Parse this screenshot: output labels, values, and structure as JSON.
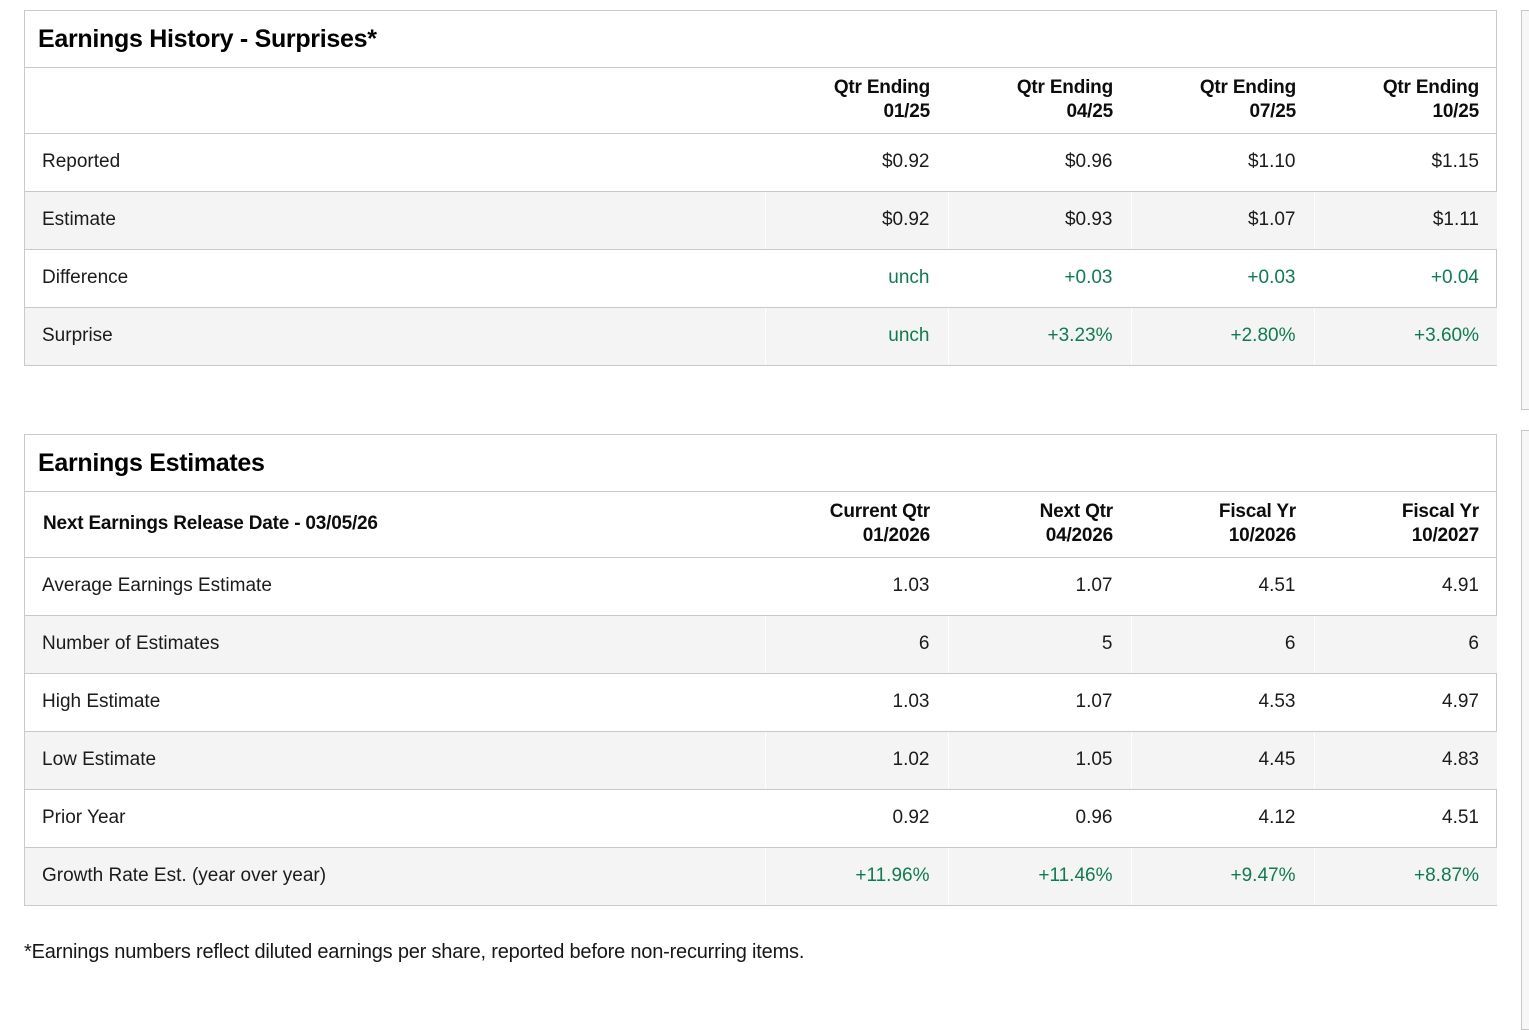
{
  "colors": {
    "positive": "#0e7c4f",
    "row_stripe": "#f4f4f4",
    "border": "#c9c9c9"
  },
  "history": {
    "title": "Earnings History - Surprises*",
    "columns": [
      "Qtr Ending\n01/25",
      "Qtr Ending\n04/25",
      "Qtr Ending\n07/25",
      "Qtr Ending\n10/25"
    ],
    "rows": [
      {
        "label": "Reported",
        "values": [
          "$0.92",
          "$0.96",
          "$1.10",
          "$1.15"
        ]
      },
      {
        "label": "Estimate",
        "values": [
          "$0.92",
          "$0.93",
          "$1.07",
          "$1.11"
        ]
      },
      {
        "label": "Difference",
        "values": [
          "unch",
          "+0.03",
          "+0.03",
          "+0.04"
        ]
      },
      {
        "label": "Surprise",
        "values": [
          "unch",
          "+3.23%",
          "+2.80%",
          "+3.60%"
        ]
      }
    ]
  },
  "estimates": {
    "title": "Earnings Estimates",
    "row_header_label": "Next Earnings Release Date - 03/05/26",
    "columns": [
      "Current Qtr\n01/2026",
      "Next Qtr\n04/2026",
      "Fiscal Yr\n10/2026",
      "Fiscal Yr\n10/2027"
    ],
    "rows": [
      {
        "label": "Average Earnings Estimate",
        "values": [
          "1.03",
          "1.07",
          "4.51",
          "4.91"
        ]
      },
      {
        "label": "Number of Estimates",
        "values": [
          "6",
          "5",
          "6",
          "6"
        ]
      },
      {
        "label": "High Estimate",
        "values": [
          "1.03",
          "1.07",
          "4.53",
          "4.97"
        ]
      },
      {
        "label": "Low Estimate",
        "values": [
          "1.02",
          "1.05",
          "4.45",
          "4.83"
        ]
      },
      {
        "label": "Prior Year",
        "values": [
          "0.92",
          "0.96",
          "4.12",
          "4.51"
        ]
      },
      {
        "label": "Growth Rate Est. (year over year)",
        "values": [
          "+11.96%",
          "+11.46%",
          "+9.47%",
          "+8.87%"
        ]
      }
    ]
  },
  "footnote": "*Earnings numbers reflect diluted earnings per share, reported before non-recurring items."
}
